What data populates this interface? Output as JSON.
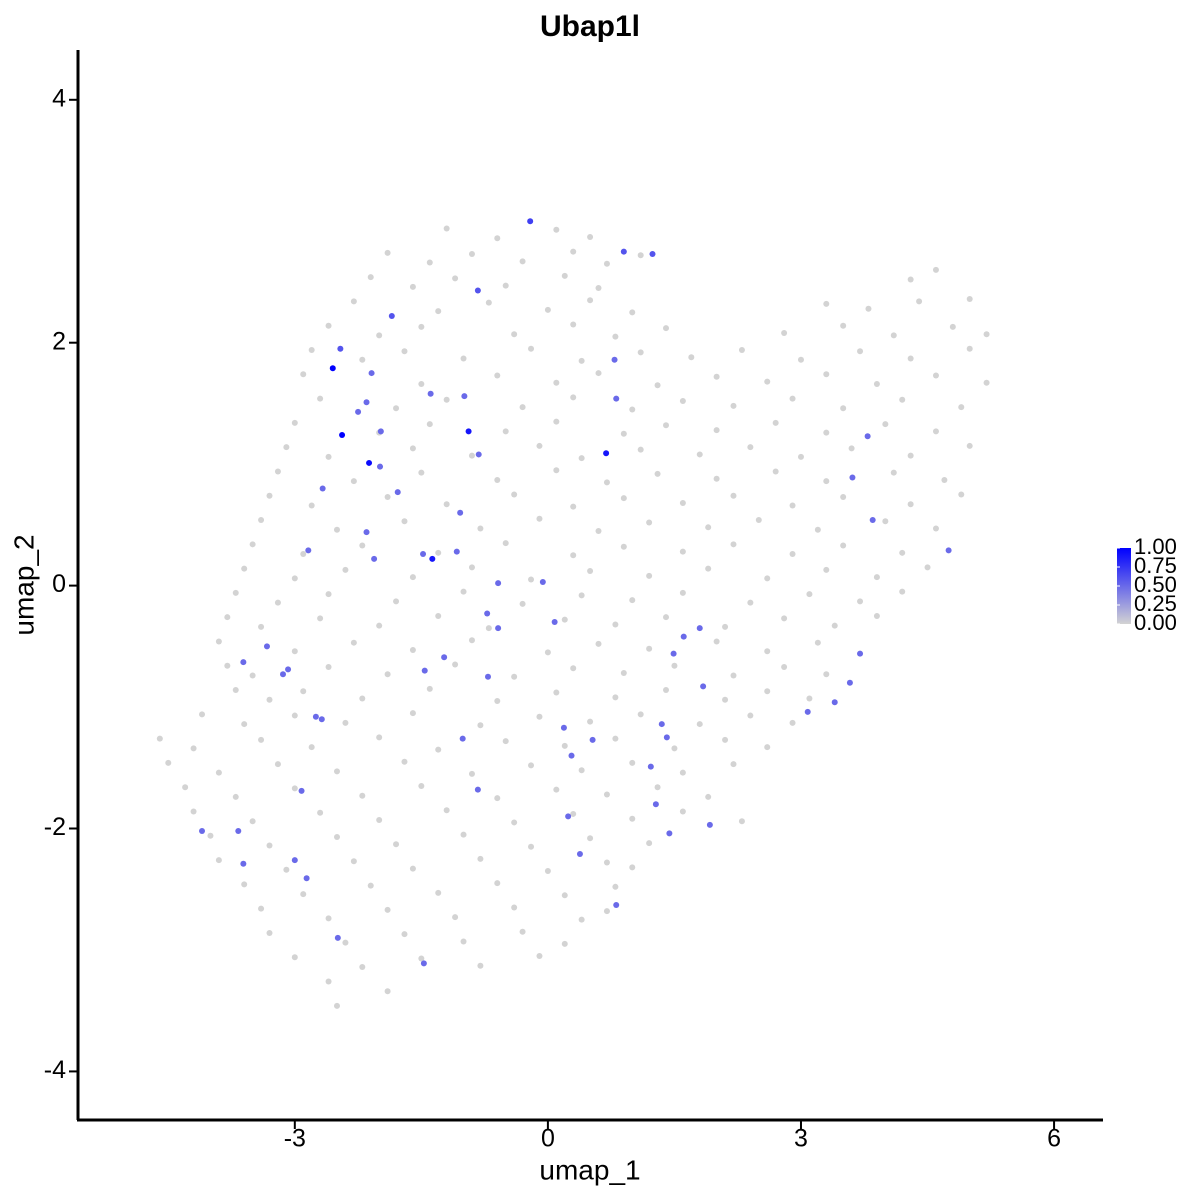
{
  "chart_data": {
    "type": "scatter",
    "title": "Ubap1l",
    "x_label": "umap_1",
    "y_label": "umap_2",
    "xlim": [
      -5.57,
      6.58
    ],
    "ylim": [
      -4.4,
      4.41
    ],
    "xticks": [
      -3,
      0,
      3,
      6
    ],
    "yticks": [
      -4,
      -2,
      0,
      2,
      4
    ],
    "color_low": "#d3d3d3",
    "color_high": "#0000ff",
    "color_lim": [
      0,
      1
    ],
    "color_ticks": [
      {
        "value": 0,
        "label": "0.00"
      },
      {
        "value": 0.25,
        "label": "0.25"
      },
      {
        "value": 0.5,
        "label": "0.50"
      },
      {
        "value": 0.75,
        "label": "0.75"
      },
      {
        "value": 1,
        "label": "1.00"
      }
    ],
    "x": [
      -1.2,
      -0.6,
      0.1,
      0.5,
      -1.9,
      -1.4,
      -0.9,
      -0.3,
      0.3,
      0.7,
      1.1,
      -2.1,
      -1.6,
      -1.1,
      -0.5,
      0.2,
      0.6,
      4.3,
      4.6,
      -2.3,
      -1.3,
      -0.7,
      0.0,
      0.5,
      1.0,
      3.3,
      3.8,
      4.4,
      5.0,
      -2.6,
      -2.0,
      -1.5,
      -0.4,
      0.3,
      0.8,
      1.4,
      2.8,
      3.5,
      4.1,
      4.8,
      5.2,
      -2.8,
      -2.2,
      -1.7,
      -1.0,
      -0.2,
      0.4,
      1.1,
      1.7,
      2.3,
      3.0,
      3.7,
      4.3,
      5.0,
      -2.9,
      -1.5,
      -0.6,
      0.1,
      0.6,
      1.3,
      2.0,
      2.6,
      3.3,
      3.9,
      4.6,
      5.2,
      -2.7,
      -1.8,
      -1.2,
      -0.3,
      0.3,
      1.0,
      1.6,
      2.2,
      2.9,
      3.5,
      4.2,
      4.9,
      -3.0,
      -2.0,
      -1.4,
      -0.5,
      0.1,
      0.9,
      1.4,
      2.0,
      2.7,
      3.3,
      4.0,
      4.6,
      -3.1,
      -2.6,
      -1.6,
      -0.9,
      -0.1,
      0.4,
      1.1,
      1.8,
      2.4,
      3.0,
      3.6,
      4.3,
      5.0,
      -3.2,
      -2.3,
      -1.5,
      -0.6,
      0.1,
      0.7,
      1.3,
      2.0,
      2.7,
      3.3,
      4.1,
      4.7,
      -3.3,
      -2.8,
      -1.9,
      -1.2,
      -0.4,
      0.3,
      0.9,
      1.6,
      2.2,
      2.9,
      3.5,
      4.3,
      4.9,
      -3.4,
      -2.5,
      -1.7,
      -0.8,
      -0.1,
      0.6,
      1.2,
      1.9,
      2.5,
      3.2,
      4.0,
      4.6,
      -3.5,
      -2.9,
      -2.2,
      -1.3,
      -0.5,
      0.3,
      0.9,
      1.6,
      2.2,
      2.9,
      3.5,
      4.2,
      -3.6,
      -3.0,
      -2.4,
      -1.6,
      -0.9,
      -0.2,
      0.5,
      1.2,
      1.9,
      2.6,
      3.3,
      3.9,
      4.5,
      -3.7,
      -3.2,
      -2.6,
      -1.8,
      -1.0,
      -0.3,
      0.4,
      1.0,
      1.6,
      2.4,
      3.1,
      3.7,
      4.2,
      -3.8,
      -3.4,
      -2.7,
      -2.0,
      -1.3,
      -0.7,
      0.2,
      0.8,
      1.4,
      2.1,
      2.8,
      3.4,
      3.9,
      -3.9,
      -3.0,
      -2.3,
      -1.6,
      -0.9,
      0.0,
      0.6,
      1.2,
      2.0,
      2.6,
      3.2,
      -3.8,
      -3.5,
      -2.6,
      -1.9,
      -1.1,
      -0.4,
      0.3,
      0.9,
      1.5,
      2.2,
      2.8,
      3.3,
      -3.7,
      -3.3,
      -2.9,
      -2.2,
      -1.4,
      -0.6,
      0.1,
      0.8,
      1.4,
      2.1,
      2.6,
      3.1,
      -4.1,
      -3.6,
      -3.0,
      -2.4,
      -1.6,
      -0.8,
      -0.1,
      0.5,
      1.1,
      1.8,
      2.4,
      2.9,
      -4.6,
      -4.2,
      -3.4,
      -2.8,
      -2.0,
      -1.3,
      -0.5,
      0.2,
      0.8,
      1.5,
      2.1,
      2.6,
      -4.5,
      -3.9,
      -3.2,
      -2.5,
      -1.7,
      -0.9,
      -0.2,
      0.4,
      1.0,
      1.6,
      2.2,
      -4.3,
      -3.7,
      -3.0,
      -2.2,
      -1.5,
      -0.6,
      0.1,
      0.7,
      1.3,
      1.9,
      -4.2,
      -3.5,
      -2.7,
      -2.0,
      -1.2,
      -0.4,
      0.3,
      1.0,
      1.6,
      2.3,
      -4.0,
      -3.3,
      -2.5,
      -1.8,
      -1.0,
      -0.2,
      0.5,
      1.2,
      -3.9,
      -3.1,
      -2.3,
      -1.6,
      -0.8,
      0.0,
      0.7,
      1.0,
      -3.6,
      -2.9,
      -2.1,
      -1.3,
      -0.6,
      0.2,
      0.8,
      -3.4,
      -2.6,
      -1.9,
      -1.1,
      -0.4,
      0.4,
      0.7,
      -3.3,
      -2.4,
      -1.7,
      -1.0,
      -0.3,
      0.2,
      -3.0,
      -2.2,
      -1.5,
      -0.8,
      -0.1,
      -2.6,
      -1.9,
      -2.5,
      -2.55,
      -2.44,
      -2.12,
      -1.37,
      -0.94,
      0.69,
      -0.21,
      0.9,
      1.24,
      -1.85,
      -2.46,
      -0.83,
      0.79,
      -2.09,
      -2.15,
      -2.25,
      -1.39,
      -0.99,
      -1.99,
      -1.98,
      -0.82,
      0.81,
      -2.67,
      -1.78,
      -2.15,
      -1.04,
      -2.84,
      -2.06,
      -1.48,
      -1.08,
      -0.59,
      -0.06,
      0.08,
      -0.72,
      -0.59,
      3.79,
      3.61,
      3.85,
      4.75,
      1.8,
      1.61,
      1.49,
      1.84,
      3.7,
      3.58,
      3.4,
      3.08,
      -3.61,
      -3.33,
      -3.08,
      -3.14,
      -2.75,
      -2.68,
      -1.23,
      -1.46,
      -0.71,
      -1.01,
      0.19,
      0.28,
      0.53,
      1.35,
      1.41,
      1.22,
      -2.92,
      -0.83,
      1.28,
      1.44,
      1.92,
      0.24,
      0.38,
      -4.1,
      -3.67,
      -3.61,
      -3.0,
      -2.86,
      -2.49,
      -1.47,
      0.81
    ],
    "y": [
      2.94,
      2.86,
      2.93,
      2.87,
      2.74,
      2.66,
      2.73,
      2.67,
      2.75,
      2.65,
      2.72,
      2.54,
      2.46,
      2.53,
      2.47,
      2.55,
      2.45,
      2.52,
      2.6,
      2.34,
      2.26,
      2.33,
      2.27,
      2.35,
      2.25,
      2.32,
      2.28,
      2.34,
      2.36,
      2.14,
      2.06,
      2.13,
      2.07,
      2.15,
      2.05,
      2.12,
      2.08,
      2.14,
      2.06,
      2.13,
      2.07,
      1.94,
      1.86,
      1.93,
      1.87,
      1.95,
      1.85,
      1.92,
      1.88,
      1.94,
      1.86,
      1.93,
      1.87,
      1.95,
      1.74,
      1.66,
      1.73,
      1.67,
      1.75,
      1.65,
      1.72,
      1.68,
      1.74,
      1.66,
      1.73,
      1.67,
      1.54,
      1.46,
      1.53,
      1.47,
      1.55,
      1.45,
      1.52,
      1.48,
      1.54,
      1.46,
      1.53,
      1.47,
      1.34,
      1.26,
      1.33,
      1.27,
      1.35,
      1.25,
      1.32,
      1.28,
      1.34,
      1.26,
      1.33,
      1.27,
      1.14,
      1.06,
      1.13,
      1.07,
      1.15,
      1.05,
      1.12,
      1.08,
      1.14,
      1.06,
      1.13,
      1.07,
      1.15,
      0.94,
      0.86,
      0.93,
      0.87,
      0.95,
      0.85,
      0.92,
      0.88,
      0.94,
      0.86,
      0.93,
      0.87,
      0.74,
      0.66,
      0.73,
      0.67,
      0.75,
      0.65,
      0.72,
      0.68,
      0.74,
      0.66,
      0.73,
      0.67,
      0.75,
      0.54,
      0.46,
      0.53,
      0.47,
      0.55,
      0.45,
      0.52,
      0.48,
      0.54,
      0.46,
      0.53,
      0.47,
      0.34,
      0.26,
      0.33,
      0.27,
      0.35,
      0.25,
      0.32,
      0.28,
      0.34,
      0.26,
      0.33,
      0.27,
      0.14,
      0.06,
      0.13,
      0.07,
      0.15,
      0.05,
      0.12,
      0.08,
      0.14,
      0.06,
      0.13,
      0.07,
      0.15,
      -0.06,
      -0.14,
      -0.07,
      -0.13,
      -0.05,
      -0.15,
      -0.08,
      -0.12,
      -0.06,
      -0.14,
      -0.07,
      -0.13,
      -0.05,
      -0.26,
      -0.34,
      -0.27,
      -0.33,
      -0.25,
      -0.35,
      -0.28,
      -0.32,
      -0.26,
      -0.34,
      -0.27,
      -0.33,
      -0.25,
      -0.46,
      -0.54,
      -0.47,
      -0.53,
      -0.45,
      -0.55,
      -0.48,
      -0.52,
      -0.46,
      -0.54,
      -0.47,
      -0.66,
      -0.74,
      -0.67,
      -0.73,
      -0.65,
      -0.75,
      -0.68,
      -0.72,
      -0.66,
      -0.74,
      -0.67,
      -0.73,
      -0.86,
      -0.94,
      -0.87,
      -0.93,
      -0.85,
      -0.95,
      -0.88,
      -0.92,
      -0.86,
      -0.94,
      -0.87,
      -0.93,
      -1.06,
      -1.14,
      -1.07,
      -1.13,
      -1.05,
      -1.15,
      -1.08,
      -1.12,
      -1.06,
      -1.14,
      -1.07,
      -1.13,
      -1.26,
      -1.34,
      -1.27,
      -1.33,
      -1.25,
      -1.35,
      -1.28,
      -1.32,
      -1.26,
      -1.34,
      -1.27,
      -1.33,
      -1.46,
      -1.54,
      -1.47,
      -1.53,
      -1.45,
      -1.55,
      -1.48,
      -1.52,
      -1.46,
      -1.54,
      -1.47,
      -1.66,
      -1.74,
      -1.67,
      -1.73,
      -1.65,
      -1.75,
      -1.68,
      -1.72,
      -1.66,
      -1.74,
      -1.86,
      -1.94,
      -1.87,
      -1.93,
      -1.85,
      -1.95,
      -1.88,
      -1.92,
      -1.86,
      -1.94,
      -2.06,
      -2.14,
      -2.07,
      -2.13,
      -2.05,
      -2.15,
      -2.08,
      -2.12,
      -2.26,
      -2.34,
      -2.27,
      -2.33,
      -2.25,
      -2.35,
      -2.28,
      -2.32,
      -2.46,
      -2.54,
      -2.47,
      -2.53,
      -2.45,
      -2.55,
      -2.48,
      -2.66,
      -2.74,
      -2.67,
      -2.73,
      -2.65,
      -2.75,
      -2.68,
      -2.86,
      -2.94,
      -2.87,
      -2.93,
      -2.85,
      -2.95,
      -3.06,
      -3.14,
      -3.07,
      -3.13,
      -3.05,
      -3.26,
      -3.34,
      -3.46,
      1.79,
      1.24,
      1.01,
      0.22,
      1.27,
      1.09,
      3.0,
      2.75,
      2.73,
      2.22,
      1.95,
      2.43,
      1.86,
      1.75,
      1.51,
      1.43,
      1.58,
      1.56,
      0.98,
      1.27,
      1.08,
      1.54,
      0.8,
      0.77,
      0.44,
      0.6,
      0.29,
      0.22,
      0.26,
      0.28,
      0.02,
      0.03,
      -0.3,
      -0.23,
      -0.35,
      1.23,
      0.89,
      0.54,
      0.29,
      -0.35,
      -0.42,
      -0.56,
      -0.83,
      -0.56,
      -0.8,
      -0.96,
      -1.04,
      -0.63,
      -0.5,
      -0.69,
      -0.73,
      -1.08,
      -1.1,
      -0.59,
      -0.7,
      -0.75,
      -1.26,
      -1.17,
      -1.4,
      -1.27,
      -1.14,
      -1.25,
      -1.49,
      -1.69,
      -1.68,
      -1.8,
      -2.04,
      -1.97,
      -1.9,
      -2.21,
      -2.02,
      -2.02,
      -2.29,
      -2.26,
      -2.41,
      -2.9,
      -3.11,
      -2.63
    ],
    "values": [
      0,
      0,
      0,
      0,
      0,
      0,
      0,
      0,
      0,
      0,
      0,
      0,
      0,
      0,
      0,
      0,
      0,
      0,
      0,
      0,
      0,
      0,
      0,
      0,
      0,
      0,
      0,
      0,
      0,
      0,
      0,
      0,
      0,
      0,
      0,
      0,
      0,
      0,
      0,
      0,
      0,
      0,
      0,
      0,
      0,
      0,
      0,
      0,
      0,
      0,
      0,
      0,
      0,
      0,
      0,
      0,
      0,
      0,
      0,
      0,
      0,
      0,
      0,
      0,
      0,
      0,
      0,
      0,
      0,
      0,
      0,
      0,
      0,
      0,
      0,
      0,
      0,
      0,
      0,
      0,
      0,
      0,
      0,
      0,
      0,
      0,
      0,
      0,
      0,
      0,
      0,
      0,
      0,
      0,
      0,
      0,
      0,
      0,
      0,
      0,
      0,
      0,
      0,
      0,
      0,
      0,
      0,
      0,
      0,
      0,
      0,
      0,
      0,
      0,
      0,
      0,
      0,
      0,
      0,
      0,
      0,
      0,
      0,
      0,
      0,
      0,
      0,
      0,
      0,
      0,
      0,
      0,
      0,
      0,
      0,
      0,
      0,
      0,
      0,
      0,
      0,
      0,
      0,
      0,
      0,
      0,
      0,
      0,
      0,
      0,
      0,
      0,
      0,
      0,
      0,
      0,
      0,
      0,
      0,
      0,
      0,
      0,
      0,
      0,
      0,
      0,
      0,
      0,
      0,
      0,
      0,
      0,
      0,
      0,
      0,
      0,
      0,
      0,
      0,
      0,
      0,
      0,
      0,
      0,
      0,
      0,
      0,
      0,
      0,
      0,
      0,
      0,
      0,
      0,
      0,
      0,
      0,
      0,
      0,
      0,
      0,
      0,
      0,
      0,
      0,
      0,
      0,
      0,
      0,
      0,
      0,
      0,
      0,
      0,
      0,
      0,
      0,
      0,
      0,
      0,
      0,
      0,
      0,
      0,
      0,
      0,
      0,
      0,
      0,
      0,
      0,
      0,
      0,
      0,
      0,
      0,
      0,
      0,
      0,
      0,
      0,
      0,
      0,
      0,
      0,
      0,
      0,
      0,
      0,
      0,
      0,
      0,
      0,
      0,
      0,
      0,
      0,
      0,
      0,
      0,
      0,
      0,
      0,
      0,
      0,
      0,
      0,
      0,
      0,
      0,
      0,
      0,
      0,
      0,
      0,
      0,
      0,
      0,
      0,
      0,
      0,
      0,
      0,
      0,
      0,
      0,
      0,
      0,
      0,
      0,
      0,
      0,
      0,
      0,
      0,
      0,
      0,
      0,
      0,
      0,
      0,
      0,
      0,
      0,
      0,
      0,
      0,
      0,
      0,
      0,
      0,
      0,
      0,
      0,
      0,
      0,
      0,
      0,
      0,
      0,
      0,
      0,
      0,
      0,
      0,
      1,
      1,
      0.95,
      0.9,
      0.9,
      0.9,
      0.7,
      0.6,
      0.6,
      0.6,
      0.6,
      0.6,
      0.5,
      0.5,
      0.5,
      0.5,
      0.5,
      0.5,
      0.5,
      0.5,
      0.5,
      0.5,
      0.5,
      0.5,
      0.5,
      0.5,
      0.5,
      0.5,
      0.5,
      0.5,
      0.5,
      0.5,
      0.5,
      0.5,
      0.5,
      0.5,
      0.5,
      0.5,
      0.5,
      0.5,
      0.5,
      0.5,
      0.5,
      0.5,
      0.5,
      0.5,
      0.5,
      0.5,
      0.5,
      0.5,
      0.5,
      0.5,
      0.5,
      0.5,
      0.5,
      0.5,
      0.5,
      0.5,
      0.5,
      0.5,
      0.5,
      0.5,
      0.5,
      0.5,
      0.5,
      0.5,
      0.5,
      0.5,
      0.5,
      0.5,
      0.5,
      0.5,
      0.5,
      0.5,
      0.5,
      0.5,
      0.5,
      0.5
    ]
  }
}
